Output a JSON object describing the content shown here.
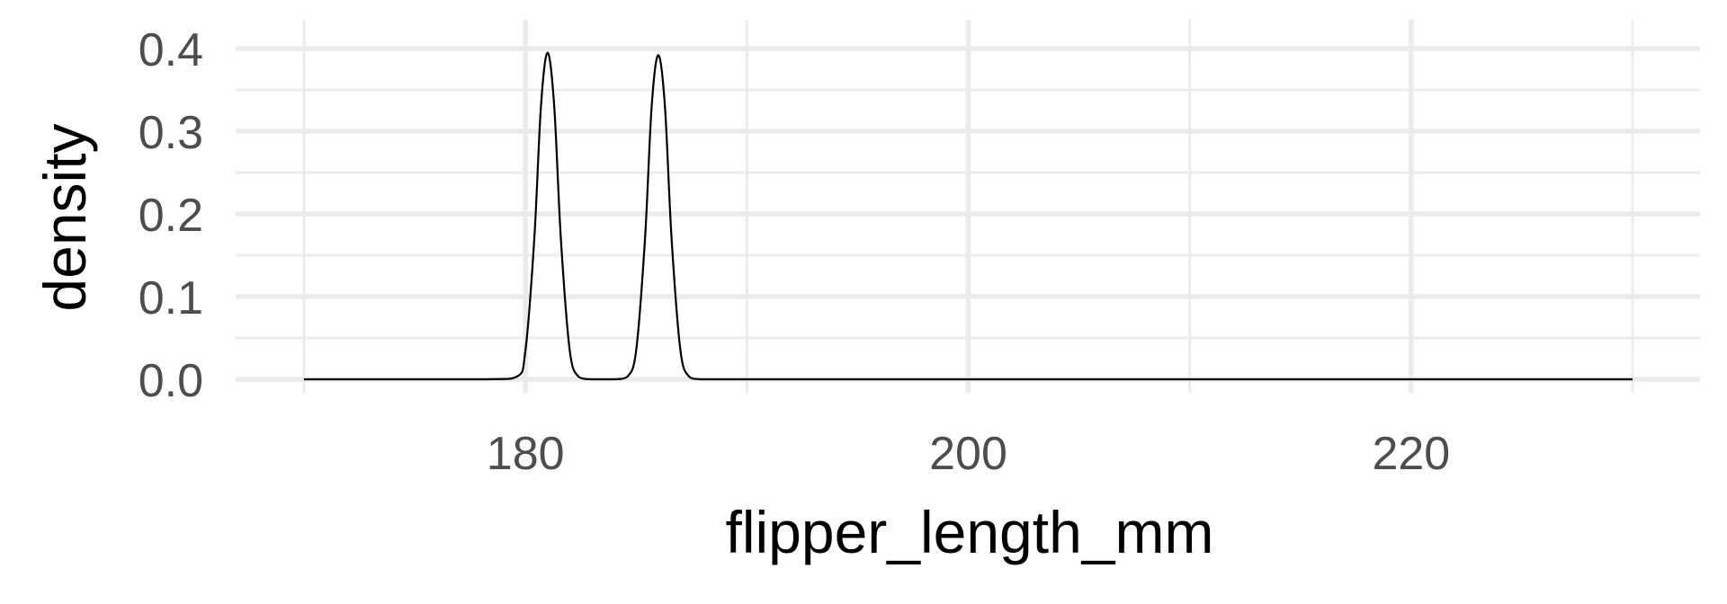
{
  "chart_data": {
    "type": "line",
    "xlabel": "flipper_length_mm",
    "ylabel": "density",
    "xlim": [
      170,
      230
    ],
    "ylim": [
      0,
      0.4
    ],
    "x_ticks": [
      180,
      200,
      220
    ],
    "y_ticks": [
      0.0,
      0.1,
      0.2,
      0.3,
      0.4
    ],
    "x_tick_labels": [
      "180",
      "200",
      "220"
    ],
    "y_tick_labels": [
      "0.0",
      "0.1",
      "0.2",
      "0.3",
      "0.4"
    ],
    "grid": true,
    "series": [
      {
        "x": [
          170,
          178,
          179.6,
          180.0,
          180.4,
          180.7,
          181.0,
          181.3,
          181.6,
          182.0,
          182.4,
          183.0,
          184.0,
          184.6,
          185.0,
          185.4,
          185.7,
          186.0,
          186.3,
          186.6,
          187.0,
          187.4,
          188.0,
          190,
          200,
          210,
          220,
          230
        ],
        "y": [
          0,
          0,
          0.003,
          0.035,
          0.17,
          0.33,
          0.395,
          0.33,
          0.17,
          0.035,
          0.003,
          0,
          0,
          0.003,
          0.035,
          0.17,
          0.33,
          0.392,
          0.33,
          0.17,
          0.035,
          0.003,
          0,
          0,
          0,
          0,
          0,
          0
        ],
        "color": "#000000"
      }
    ]
  }
}
